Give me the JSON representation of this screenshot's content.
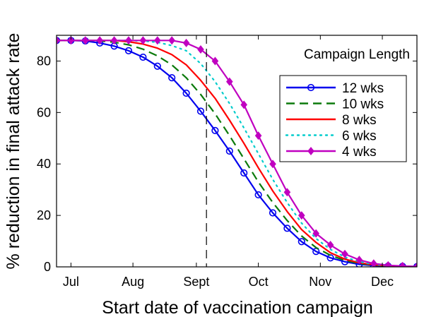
{
  "chart_data": {
    "type": "line",
    "title": "",
    "xlabel": "Start date of vaccination campaign",
    "ylabel": "% reduction in final attack rate",
    "x_unit": "weeks",
    "xlim": [
      0,
      25
    ],
    "ylim": [
      0,
      90
    ],
    "yticks": [
      0,
      20,
      40,
      60,
      80
    ],
    "xticks": [
      {
        "label": "Jul",
        "x": 1
      },
      {
        "label": "Aug",
        "x": 5.3
      },
      {
        "label": "Sept",
        "x": 9.7
      },
      {
        "label": "Oct",
        "x": 14
      },
      {
        "label": "Nov",
        "x": 18.3
      },
      {
        "label": "Dec",
        "x": 22.6
      }
    ],
    "vline_x": 10.4,
    "grid": false,
    "legend_position": "upper right",
    "legend_title": "Campaign Length",
    "x": [
      0,
      1,
      2,
      3,
      4,
      5,
      6,
      7,
      8,
      9,
      10,
      11,
      12,
      13,
      14,
      15,
      16,
      17,
      18,
      19,
      20,
      21,
      22,
      23,
      24,
      25
    ],
    "series": [
      {
        "name": "12 wks",
        "color": "#0000ee",
        "style": "solid",
        "marker": "circle",
        "values": [
          88,
          88,
          87.8,
          87,
          85.8,
          84,
          81.5,
          78,
          73.5,
          67.5,
          60.5,
          53,
          45,
          36.5,
          28,
          21,
          15,
          9.8,
          6,
          3.5,
          2,
          1,
          0.5,
          0.3,
          0.2,
          0.1
        ]
      },
      {
        "name": "10 wks",
        "color": "#0b7a0b",
        "style": "dashed",
        "marker": "none",
        "values": [
          88,
          88,
          88,
          87.8,
          87.3,
          86.3,
          84.6,
          82,
          78.5,
          73.5,
          67,
          59.5,
          51,
          42,
          33,
          25,
          18,
          12,
          7.5,
          4.5,
          2.5,
          1.3,
          0.7,
          0.4,
          0.2,
          0.1
        ]
      },
      {
        "name": "8 wks",
        "color": "#ff0000",
        "style": "solid",
        "marker": "none",
        "values": [
          88,
          88,
          88,
          88,
          88,
          87.5,
          86.6,
          85,
          82.5,
          78.5,
          72.5,
          65.5,
          57,
          48,
          38.5,
          29.5,
          21.5,
          14.5,
          9.5,
          5.5,
          3,
          1.6,
          0.8,
          0.4,
          0.2,
          0.1
        ]
      },
      {
        "name": "6 wks",
        "color": "#00cccc",
        "style": "dotted",
        "marker": "none",
        "values": [
          88,
          88,
          88,
          88,
          88,
          88,
          87.8,
          87.3,
          86,
          84,
          79,
          72,
          63.5,
          54,
          44,
          34,
          25,
          17,
          11,
          6.8,
          3.8,
          2,
          1,
          0.5,
          0.3,
          0.1
        ]
      },
      {
        "name": "4 wks",
        "color": "#c000c0",
        "style": "solid",
        "marker": "diamond",
        "values": [
          88,
          88,
          88,
          88,
          88,
          88,
          88,
          88,
          88,
          87,
          84.5,
          80,
          72,
          63,
          51,
          40,
          29,
          20,
          13,
          8.5,
          5,
          2.7,
          1.3,
          0.6,
          0.3,
          0.1
        ]
      }
    ]
  }
}
